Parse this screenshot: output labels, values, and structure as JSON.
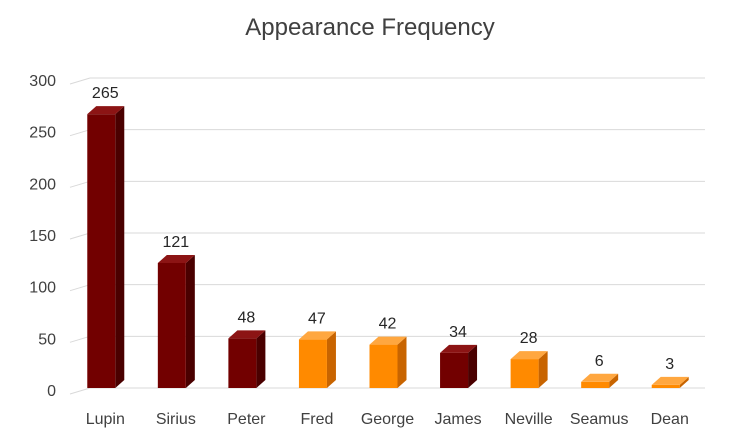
{
  "chart_data": {
    "type": "bar",
    "title": "Appearance Frequency",
    "xlabel": "",
    "ylabel": "",
    "ylim": [
      0,
      300
    ],
    "yticks": [
      0,
      50,
      100,
      150,
      200,
      250,
      300
    ],
    "grid": true,
    "legend": "none",
    "categories": [
      "Lupin",
      "Sirius",
      "Peter",
      "Fred",
      "George",
      "James",
      "Neville",
      "Seamus",
      "Dean"
    ],
    "values": [
      265,
      121,
      48,
      47,
      42,
      34,
      28,
      6,
      3
    ],
    "data_labels": [
      "265",
      "121",
      "48",
      "47",
      "42",
      "34",
      "28",
      "6",
      "3"
    ],
    "bar_colors": [
      "#720000",
      "#720000",
      "#720000",
      "#FF8A00",
      "#FF8A00",
      "#720000",
      "#FF8A00",
      "#FF8A00",
      "#FF8A00"
    ],
    "colors": {
      "maroon": {
        "front": "#720000",
        "side": "#4A0000",
        "top": "#8C1414"
      },
      "orange": {
        "front": "#FF8A00",
        "side": "#C86400",
        "top": "#FFA740"
      },
      "grid": "#D9D9D9"
    }
  }
}
